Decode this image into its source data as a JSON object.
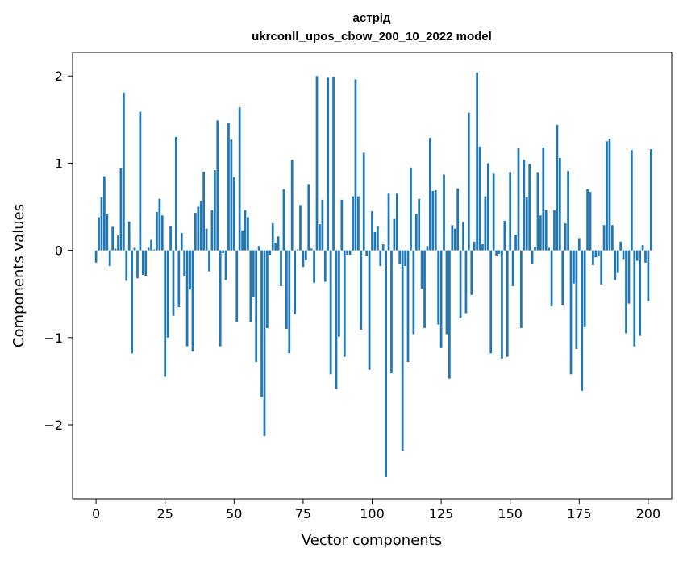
{
  "chart_data": {
    "type": "bar",
    "title": "астрід",
    "subtitle": "ukrconll_upos_cbow_200_10_2022 model",
    "xlabel": "Vector components",
    "ylabel": "Components values",
    "xlim": [
      -8.5,
      208.5
    ],
    "ylim": [
      -2.85,
      2.27
    ],
    "xticks": [
      0,
      25,
      50,
      75,
      100,
      125,
      150,
      175,
      200
    ],
    "yticks": [
      -2,
      -1,
      0,
      1,
      2
    ],
    "grid": false,
    "bar_color": "#1f77b4",
    "values": [
      -0.14,
      0.38,
      0.61,
      0.85,
      0.42,
      -0.18,
      0.27,
      0.02,
      0.17,
      0.94,
      1.81,
      -0.35,
      0.33,
      -1.18,
      0.03,
      -0.32,
      1.59,
      -0.28,
      -0.29,
      0.03,
      0.12,
      0.01,
      0.44,
      0.59,
      0.4,
      -1.45,
      -1.0,
      0.28,
      -0.75,
      1.3,
      -0.65,
      0.2,
      -0.3,
      -1.1,
      -0.45,
      -1.16,
      0.43,
      0.5,
      0.57,
      0.9,
      0.25,
      -0.24,
      0.46,
      0.92,
      1.49,
      -1.1,
      -0.03,
      -0.34,
      1.46,
      1.27,
      0.84,
      -0.82,
      1.64,
      0.23,
      0.46,
      0.38,
      -0.82,
      -0.54,
      -1.28,
      0.05,
      -1.68,
      -2.13,
      -0.89,
      -0.05,
      0.31,
      0.09,
      0.16,
      -0.41,
      0.7,
      -0.9,
      -1.18,
      1.04,
      -0.73,
      0.01,
      0.52,
      -0.19,
      -0.11,
      0.76,
      0.02,
      -0.37,
      2.0,
      0.3,
      0.58,
      -0.36,
      1.98,
      -1.42,
      1.99,
      -1.59,
      -0.99,
      0.58,
      -1.22,
      -0.05,
      -0.05,
      0.62,
      1.96,
      0.62,
      -0.91,
      1.12,
      -0.06,
      -1.37,
      0.45,
      0.21,
      0.28,
      -0.18,
      0.07,
      -2.6,
      0.65,
      -1.41,
      0.36,
      0.65,
      -0.16,
      -2.3,
      -0.18,
      -1.28,
      0.95,
      -0.96,
      0.42,
      0.59,
      -0.44,
      -0.89,
      0.05,
      1.29,
      0.68,
      0.69,
      -0.85,
      -1.12,
      0.87,
      -0.96,
      -1.47,
      0.29,
      0.25,
      0.71,
      -0.78,
      0.33,
      -0.72,
      1.58,
      -0.51,
      0.1,
      2.04,
      1.19,
      0.07,
      0.62,
      1.0,
      -1.18,
      0.88,
      -0.06,
      -0.04,
      -1.24,
      0.34,
      -1.22,
      0.89,
      -0.41,
      0.18,
      1.17,
      -0.89,
      1.04,
      0.61,
      0.99,
      -0.16,
      0.04,
      0.89,
      0.4,
      1.18,
      0.46,
      0.03,
      -0.64,
      0.46,
      1.44,
      1.06,
      -0.63,
      0.31,
      0.91,
      -1.42,
      -0.38,
      -1.13,
      0.14,
      -1.61,
      -0.88,
      0.7,
      0.67,
      -0.17,
      -0.08,
      -0.06,
      -0.39,
      0.29,
      1.25,
      1.28,
      0.29,
      -0.34,
      -0.26,
      0.1,
      -0.1,
      -0.95,
      -0.61,
      1.15,
      -1.1,
      -0.12,
      -0.98,
      0.06,
      -0.14,
      -0.58,
      1.16
    ]
  }
}
